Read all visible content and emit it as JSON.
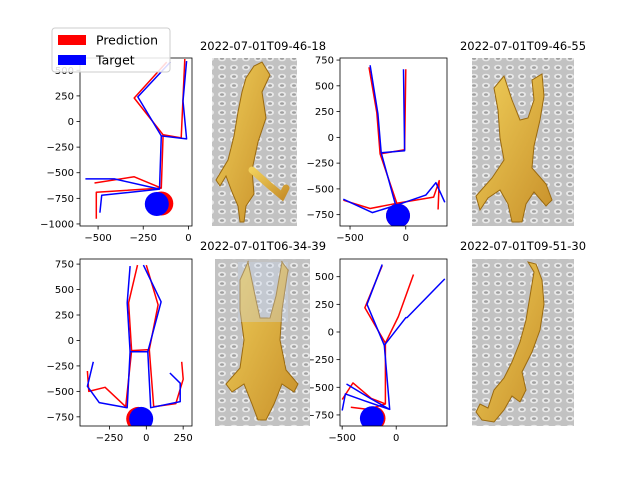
{
  "legend": {
    "entries": [
      {
        "label": "Prediction",
        "color": "#ff0000"
      },
      {
        "label": "Target",
        "color": "#0000ff"
      }
    ]
  },
  "image_titles": [
    "2022-07-01T09-46-18",
    "2022-07-01T09-46-55",
    "2022-07-01T06-34-39",
    "2022-07-01T09-51-30"
  ],
  "chart_data": [
    {
      "type": "line",
      "panel": "top-left",
      "xlim": [
        -600,
        20
      ],
      "ylim": [
        -1020,
        620
      ],
      "xticks": [
        -500,
        -250,
        0
      ],
      "yticks": [
        -1000,
        -750,
        -500,
        -250,
        0,
        250,
        500
      ],
      "series": [
        {
          "name": "Prediction",
          "color": "#ff0000",
          "lines": [
            [
              [
                -120,
                580
              ],
              [
                -300,
                230
              ],
              [
                -140,
                -130
              ],
              [
                -40,
                -160
              ],
              [
                -20,
                610
              ]
            ],
            [
              [
                -140,
                -130
              ],
              [
                -150,
                -650
              ],
              [
                -300,
                -540
              ],
              [
                -520,
                -600
              ]
            ],
            [
              [
                -150,
                -650
              ],
              [
                -510,
                -690
              ],
              [
                -510,
                -950
              ]
            ]
          ]
        },
        {
          "name": "Target",
          "color": "#0000ff",
          "lines": [
            [
              [
                -100,
                580
              ],
              [
                -280,
                240
              ],
              [
                -150,
                -140
              ],
              [
                -10,
                -170
              ],
              [
                -30,
                200
              ],
              [
                -10,
                590
              ]
            ],
            [
              [
                -150,
                -140
              ],
              [
                -160,
                -660
              ],
              [
                -410,
                -560
              ],
              [
                -570,
                -560
              ]
            ],
            [
              [
                -160,
                -660
              ],
              [
                -480,
                -720
              ],
              [
                -490,
                -890
              ]
            ]
          ]
        }
      ],
      "markers": [
        {
          "name": "Prediction",
          "color": "#ff0000",
          "x": -150,
          "y": -800
        },
        {
          "name": "Target",
          "color": "#0000ff",
          "x": -175,
          "y": -805
        }
      ]
    },
    {
      "type": "line",
      "panel": "top-middle",
      "xlim": [
        -590,
        370
      ],
      "ylim": [
        -860,
        770
      ],
      "xticks": [
        -500,
        0
      ],
      "yticks": [
        -750,
        -500,
        -250,
        0,
        250,
        500,
        750
      ],
      "series": [
        {
          "name": "Prediction",
          "color": "#ff0000",
          "lines": [
            [
              [
                -330,
                680
              ],
              [
                -260,
                240
              ],
              [
                -230,
                -160
              ],
              [
                -10,
                -120
              ],
              [
                0,
                660
              ]
            ],
            [
              [
                -230,
                -160
              ],
              [
                -80,
                -640
              ],
              [
                -320,
                -690
              ],
              [
                -560,
                -610
              ]
            ],
            [
              [
                -80,
                -640
              ],
              [
                250,
                -580
              ],
              [
                300,
                -420
              ],
              [
                290,
                -700
              ]
            ]
          ]
        },
        {
          "name": "Target",
          "color": "#0000ff",
          "lines": [
            [
              [
                -320,
                700
              ],
              [
                -250,
                230
              ],
              [
                -220,
                -150
              ],
              [
                -10,
                -130
              ],
              [
                -20,
                660
              ]
            ],
            [
              [
                -220,
                -150
              ],
              [
                -90,
                -660
              ],
              [
                -300,
                -730
              ],
              [
                -560,
                -600
              ]
            ],
            [
              [
                -90,
                -660
              ],
              [
                180,
                -560
              ],
              [
                270,
                -440
              ],
              [
                350,
                -630
              ]
            ]
          ]
        }
      ],
      "markers": [
        {
          "name": "Prediction",
          "color": "#ff0000",
          "x": -70,
          "y": -760
        },
        {
          "name": "Target",
          "color": "#0000ff",
          "x": -70,
          "y": -760
        }
      ]
    },
    {
      "type": "line",
      "panel": "bottom-left",
      "xlim": [
        -450,
        310
      ],
      "ylim": [
        -840,
        800
      ],
      "xticks": [
        -250,
        0,
        250
      ],
      "yticks": [
        -750,
        -500,
        -250,
        0,
        250,
        500,
        750
      ],
      "series": [
        {
          "name": "Prediction",
          "color": "#ff0000",
          "lines": [
            [
              [
                -60,
                740
              ],
              [
                -120,
                370
              ],
              [
                -100,
                -100
              ],
              [
                20,
                -90
              ],
              [
                80,
                350
              ],
              [
                0,
                740
              ]
            ],
            [
              [
                -100,
                -100
              ],
              [
                -140,
                -650
              ],
              [
                -280,
                -460
              ],
              [
                -390,
                -500
              ],
              [
                -400,
                -300
              ]
            ],
            [
              [
                20,
                -90
              ],
              [
                50,
                -650
              ],
              [
                200,
                -620
              ],
              [
                250,
                -380
              ],
              [
                240,
                -210
              ]
            ]
          ]
        },
        {
          "name": "Target",
          "color": "#0000ff",
          "lines": [
            [
              [
                -110,
                730
              ],
              [
                -130,
                370
              ],
              [
                -110,
                -110
              ],
              [
                10,
                -110
              ],
              [
                100,
                380
              ],
              [
                -20,
                740
              ]
            ],
            [
              [
                -110,
                -110
              ],
              [
                -130,
                -660
              ],
              [
                -320,
                -610
              ],
              [
                -400,
                -450
              ],
              [
                -360,
                -210
              ]
            ],
            [
              [
                10,
                -110
              ],
              [
                30,
                -660
              ],
              [
                230,
                -600
              ],
              [
                230,
                -420
              ],
              [
                160,
                -320
              ]
            ]
          ]
        }
      ],
      "markers": [
        {
          "name": "Prediction",
          "color": "#ff0000",
          "x": -55,
          "y": -770
        },
        {
          "name": "Target",
          "color": "#0000ff",
          "x": -35,
          "y": -770
        }
      ]
    },
    {
      "type": "line",
      "panel": "bottom-middle",
      "xlim": [
        -520,
        470
      ],
      "ylim": [
        -850,
        660
      ],
      "xticks": [
        -500,
        0
      ],
      "yticks": [
        -750,
        -500,
        -250,
        0,
        250,
        500
      ],
      "series": [
        {
          "name": "Prediction",
          "color": "#ff0000",
          "lines": [
            [
              [
                -130,
                600
              ],
              [
                -290,
                220
              ],
              [
                -100,
                -100
              ],
              [
                20,
                140
              ],
              [
                160,
                520
              ]
            ],
            [
              [
                -100,
                -100
              ],
              [
                -100,
                -650
              ],
              [
                -230,
                -600
              ],
              [
                -400,
                -460
              ],
              [
                -500,
                -610
              ]
            ],
            [
              [
                -100,
                -650
              ],
              [
                -260,
                -700
              ],
              [
                -420,
                -680
              ]
            ]
          ]
        },
        {
          "name": "Target",
          "color": "#0000ff",
          "lines": [
            [
              [
                -130,
                610
              ],
              [
                -270,
                250
              ],
              [
                -110,
                -120
              ],
              [
                90,
                130
              ],
              [
                100,
                130
              ],
              [
                450,
                480
              ]
            ],
            [
              [
                -110,
                -120
              ],
              [
                -60,
                -700
              ],
              [
                -300,
                -620
              ],
              [
                -470,
                -560
              ],
              [
                -500,
                -710
              ]
            ],
            [
              [
                -60,
                -700
              ],
              [
                -240,
                -600
              ],
              [
                -460,
                -470
              ]
            ]
          ]
        }
      ],
      "markers": [
        {
          "name": "Prediction",
          "color": "#ff0000",
          "x": -210,
          "y": -780
        },
        {
          "name": "Target",
          "color": "#0000ff",
          "x": -225,
          "y": -780
        }
      ]
    }
  ]
}
